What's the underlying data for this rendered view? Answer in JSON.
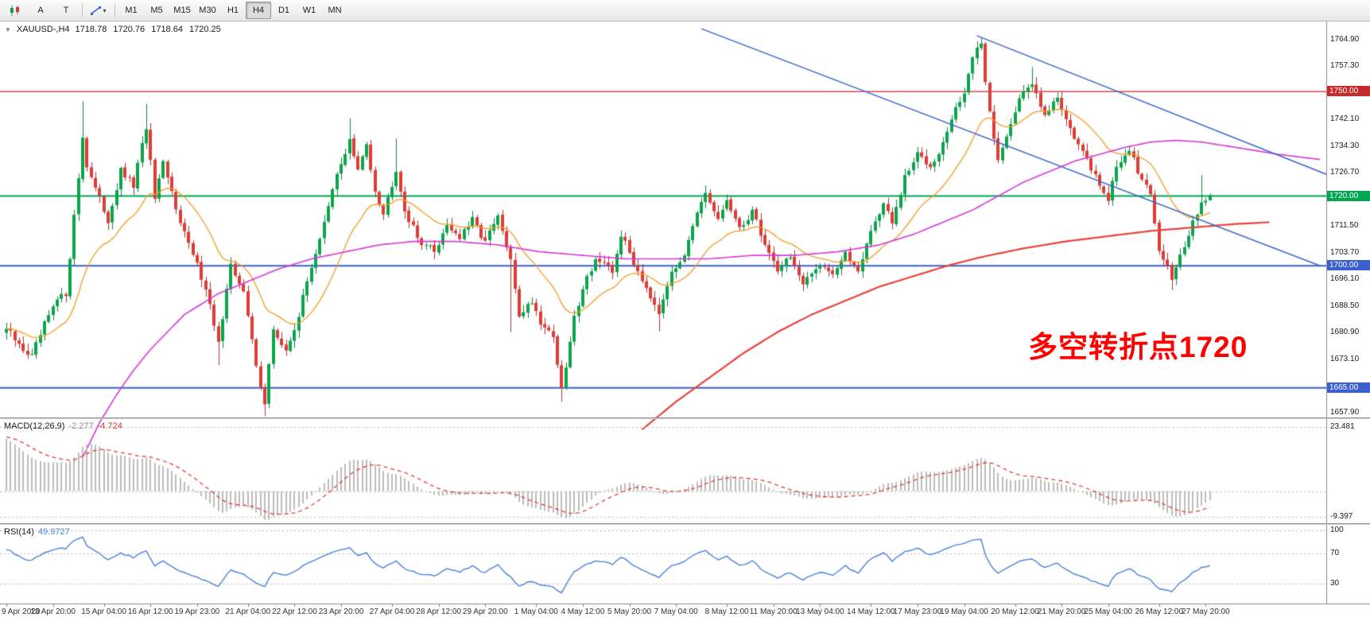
{
  "toolbar": {
    "tool_a": "A",
    "tool_t": "T",
    "timeframes": [
      "M1",
      "M5",
      "M15",
      "M30",
      "H1",
      "H4",
      "D1",
      "W1",
      "MN"
    ],
    "active_timeframe": "H4"
  },
  "chart": {
    "title": "XAUUSD-,H4",
    "ohlc": {
      "open": "1718.78",
      "high": "1720.76",
      "low": "1718.64",
      "close": "1720.25"
    },
    "annotation": {
      "text": "多空转折点1720",
      "color": "#ff0000"
    }
  },
  "macd": {
    "name": "MACD(12,26,9)",
    "value_main": "-2.277",
    "value_signal": "-4.724",
    "axis": [
      {
        "v": 23.481,
        "label": "23.481"
      },
      {
        "v": -9.397,
        "label": "-9.397"
      }
    ]
  },
  "rsi": {
    "name": "RSI(14)",
    "value": "49.9727",
    "axis": [
      {
        "v": 100,
        "label": "100"
      },
      {
        "v": 70,
        "label": "70"
      },
      {
        "v": 30,
        "label": "30"
      }
    ],
    "levels": [
      100,
      70,
      30
    ]
  },
  "time_axis": {
    "labels": [
      "9 Apr 2020",
      "13 Apr 20:00",
      "15 Apr 04:00",
      "16 Apr 12:00",
      "19 Apr 23:00",
      "21 Apr 04:00",
      "22 Apr 12:00",
      "23 Apr 20:00",
      "27 Apr 04:00",
      "28 Apr 12:00",
      "29 Apr 20:00",
      "1 May 04:00",
      "4 May 12:00",
      "5 May 20:00",
      "7 May 04:00",
      "8 May 12:00",
      "11 May 20:00",
      "13 May 04:00",
      "14 May 12:00",
      "17 May 23:00",
      "19 May 04:00",
      "20 May 12:00",
      "21 May 20:00",
      "25 May 04:00",
      "26 May 12:00",
      "27 May 20:00"
    ]
  },
  "chart_data": {
    "type": "candlestick",
    "symbol": "XAUUSD-",
    "timeframe": "H4",
    "n_candles": 285,
    "last_close": 1720.25,
    "ohlc_display": [
      1718.78,
      1720.76,
      1718.64,
      1720.25
    ],
    "colors": {
      "bull": "#0ca44a",
      "bear": "#e03c36",
      "wick_bull": "#0b8740",
      "wick_bear": "#b13030",
      "ema_fast": "#f59a23",
      "ma_mid": "#d738d7",
      "ma_slow": "#e8423c",
      "trendline": "#3b66cc",
      "macd_hist": "#bcbcbc",
      "macd_signal": "#e23b3b",
      "rsi_line": "#4a82d9",
      "level_red": "#c62a2a",
      "level_green": "#00a651",
      "level_blue": "#3b5fce"
    },
    "price_axis": {
      "ticks": [
        {
          "p": 1764.9,
          "t": "1764.90"
        },
        {
          "p": 1757.3,
          "t": "1757.30"
        },
        {
          "p": 1742.1,
          "t": "1742.10"
        },
        {
          "p": 1734.3,
          "t": "1734.30"
        },
        {
          "p": 1726.7,
          "t": "1726.70"
        },
        {
          "p": 1711.5,
          "t": "1711.50"
        },
        {
          "p": 1703.7,
          "t": "1703.70"
        },
        {
          "p": 1696.1,
          "t": "1696.10"
        },
        {
          "p": 1688.5,
          "t": "1688.50"
        },
        {
          "p": 1680.9,
          "t": "1680.90"
        },
        {
          "p": 1673.1,
          "t": "1673.10"
        },
        {
          "p": 1657.9,
          "t": "1657.90"
        }
      ]
    },
    "levels": [
      {
        "price": 1750.0,
        "label": "1750.00",
        "color": "#c62a2a",
        "width": 1.4
      },
      {
        "price": 1720.0,
        "label": "1720.00",
        "color": "#00a651",
        "width": 2
      },
      {
        "price": 1700.0,
        "label": "1700.00",
        "color": "#3b5fce",
        "width": 2
      },
      {
        "price": 1665.0,
        "label": "1665.00",
        "color": "#3b5fce",
        "width": 2
      }
    ],
    "close_anchors": [
      [
        0,
        1682
      ],
      [
        3,
        1677
      ],
      [
        6,
        1674
      ],
      [
        9,
        1683
      ],
      [
        12,
        1690
      ],
      [
        14,
        1692
      ],
      [
        16,
        1714
      ],
      [
        18,
        1737
      ],
      [
        19,
        1729
      ],
      [
        21,
        1722
      ],
      [
        24,
        1713
      ],
      [
        27,
        1727
      ],
      [
        30,
        1723
      ],
      [
        33,
        1740
      ],
      [
        35,
        1719
      ],
      [
        37,
        1729
      ],
      [
        40,
        1717
      ],
      [
        43,
        1706
      ],
      [
        47,
        1694
      ],
      [
        50,
        1678
      ],
      [
        51,
        1684
      ],
      [
        53,
        1701
      ],
      [
        56,
        1692
      ],
      [
        59,
        1672
      ],
      [
        61,
        1660
      ],
      [
        63,
        1682
      ],
      [
        66,
        1675
      ],
      [
        69,
        1686
      ],
      [
        72,
        1700
      ],
      [
        75,
        1712
      ],
      [
        78,
        1726
      ],
      [
        81,
        1736
      ],
      [
        83,
        1727
      ],
      [
        85,
        1735
      ],
      [
        87,
        1722
      ],
      [
        89,
        1715
      ],
      [
        92,
        1728
      ],
      [
        94,
        1716
      ],
      [
        97,
        1708
      ],
      [
        101,
        1704
      ],
      [
        104,
        1712
      ],
      [
        107,
        1708
      ],
      [
        110,
        1713
      ],
      [
        113,
        1707
      ],
      [
        116,
        1714
      ],
      [
        119,
        1701
      ],
      [
        121,
        1686
      ],
      [
        124,
        1690
      ],
      [
        126,
        1684
      ],
      [
        129,
        1680
      ],
      [
        131,
        1664
      ],
      [
        134,
        1685
      ],
      [
        136,
        1694
      ],
      [
        139,
        1702
      ],
      [
        143,
        1698
      ],
      [
        145,
        1709
      ],
      [
        148,
        1701
      ],
      [
        151,
        1694
      ],
      [
        154,
        1687
      ],
      [
        156,
        1695
      ],
      [
        160,
        1704
      ],
      [
        162,
        1712
      ],
      [
        165,
        1720
      ],
      [
        168,
        1713
      ],
      [
        170,
        1719
      ],
      [
        173,
        1710
      ],
      [
        176,
        1716
      ],
      [
        179,
        1706
      ],
      [
        182,
        1699
      ],
      [
        185,
        1703
      ],
      [
        188,
        1694
      ],
      [
        192,
        1701
      ],
      [
        195,
        1698
      ],
      [
        198,
        1703
      ],
      [
        201,
        1699
      ],
      [
        204,
        1710
      ],
      [
        207,
        1718
      ],
      [
        209,
        1712
      ],
      [
        212,
        1725
      ],
      [
        215,
        1732
      ],
      [
        218,
        1729
      ],
      [
        221,
        1735
      ],
      [
        223,
        1742
      ],
      [
        226,
        1750
      ],
      [
        228,
        1760
      ],
      [
        230,
        1763
      ],
      [
        232,
        1744
      ],
      [
        234,
        1730
      ],
      [
        236,
        1738
      ],
      [
        239,
        1748
      ],
      [
        242,
        1752
      ],
      [
        245,
        1744
      ],
      [
        248,
        1748
      ],
      [
        251,
        1740
      ],
      [
        254,
        1732
      ],
      [
        257,
        1726
      ],
      [
        260,
        1719
      ],
      [
        262,
        1728
      ],
      [
        265,
        1734
      ],
      [
        267,
        1727
      ],
      [
        270,
        1720
      ],
      [
        272,
        1705
      ],
      [
        275,
        1697
      ],
      [
        277,
        1703
      ],
      [
        280,
        1712
      ],
      [
        282,
        1718
      ],
      [
        284,
        1720.25
      ]
    ],
    "wick_events": [
      [
        18,
        "h",
        1747.2
      ],
      [
        33,
        "h",
        1746.5
      ],
      [
        50,
        "l",
        1671.5
      ],
      [
        61,
        "l",
        1656.8
      ],
      [
        81,
        "h",
        1742.3
      ],
      [
        92,
        "h",
        1736.5
      ],
      [
        119,
        "l",
        1681.0
      ],
      [
        131,
        "l",
        1661.0
      ],
      [
        154,
        "l",
        1681.2
      ],
      [
        230,
        "h",
        1765.4
      ],
      [
        242,
        "h",
        1757.0
      ],
      [
        275,
        "l",
        1693.0
      ],
      [
        282,
        "h",
        1726.0
      ]
    ],
    "ema_fast_period": 20,
    "ma_mid_path": [
      [
        18,
        1645
      ],
      [
        22,
        1655
      ],
      [
        26,
        1663
      ],
      [
        30,
        1670
      ],
      [
        34,
        1676
      ],
      [
        38,
        1681
      ],
      [
        42,
        1686
      ],
      [
        46,
        1689
      ],
      [
        50,
        1692
      ],
      [
        54,
        1694
      ],
      [
        58,
        1696
      ],
      [
        64,
        1699
      ],
      [
        72,
        1702
      ],
      [
        80,
        1704
      ],
      [
        88,
        1706
      ],
      [
        96,
        1707
      ],
      [
        106,
        1707
      ],
      [
        116,
        1706
      ],
      [
        126,
        1704
      ],
      [
        136,
        1703
      ],
      [
        146,
        1702
      ],
      [
        156,
        1702
      ],
      [
        166,
        1702
      ],
      [
        176,
        1703
      ],
      [
        186,
        1703
      ],
      [
        196,
        1704
      ],
      [
        206,
        1706
      ],
      [
        214,
        1709
      ],
      [
        222,
        1713
      ],
      [
        228,
        1716
      ],
      [
        234,
        1720
      ],
      [
        240,
        1724
      ],
      [
        246,
        1727
      ],
      [
        252,
        1730
      ],
      [
        258,
        1732
      ],
      [
        264,
        1734
      ],
      [
        270,
        1735.5
      ],
      [
        276,
        1736
      ],
      [
        282,
        1735.5
      ],
      [
        290,
        1734
      ],
      [
        300,
        1732
      ],
      [
        310,
        1730.5
      ]
    ],
    "ma_slow_path": [
      [
        150,
        1653
      ],
      [
        158,
        1661
      ],
      [
        166,
        1668
      ],
      [
        174,
        1675
      ],
      [
        182,
        1681
      ],
      [
        190,
        1686
      ],
      [
        198,
        1690
      ],
      [
        206,
        1694
      ],
      [
        214,
        1697
      ],
      [
        222,
        1700
      ],
      [
        230,
        1702.5
      ],
      [
        240,
        1705
      ],
      [
        250,
        1707
      ],
      [
        260,
        1708.5
      ],
      [
        270,
        1710
      ],
      [
        280,
        1711
      ],
      [
        290,
        1712
      ],
      [
        298,
        1712.5
      ]
    ],
    "trendlines": [
      {
        "from": [
          164,
          1768
        ],
        "to": [
          310,
          1700
        ]
      },
      {
        "from": [
          229,
          1766
        ],
        "to": [
          312,
          1726
        ]
      }
    ]
  }
}
